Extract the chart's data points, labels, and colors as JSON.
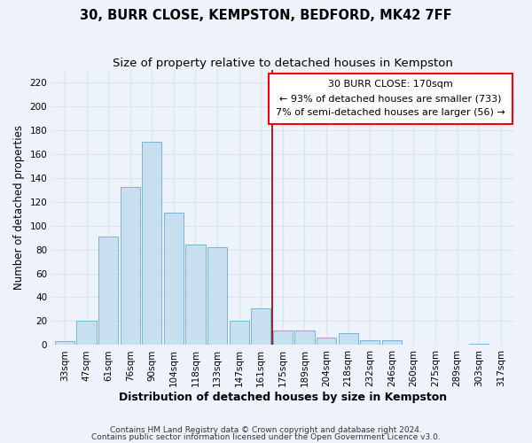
{
  "title": "30, BURR CLOSE, KEMPSTON, BEDFORD, MK42 7FF",
  "subtitle": "Size of property relative to detached houses in Kempston",
  "xlabel": "Distribution of detached houses by size in Kempston",
  "ylabel": "Number of detached properties",
  "bar_labels": [
    "33sqm",
    "47sqm",
    "61sqm",
    "76sqm",
    "90sqm",
    "104sqm",
    "118sqm",
    "133sqm",
    "147sqm",
    "161sqm",
    "175sqm",
    "189sqm",
    "204sqm",
    "218sqm",
    "232sqm",
    "246sqm",
    "260sqm",
    "275sqm",
    "289sqm",
    "303sqm",
    "317sqm"
  ],
  "bar_heights": [
    3,
    20,
    91,
    132,
    170,
    111,
    84,
    82,
    20,
    31,
    12,
    12,
    6,
    10,
    4,
    4,
    0,
    0,
    0,
    1,
    0
  ],
  "bar_color": "#c8dff0",
  "bar_edge_color": "#7bb4d4",
  "vline_label": "30 BURR CLOSE: 170sqm",
  "annotation_line1": "← 93% of detached houses are smaller (733)",
  "annotation_line2": "7% of semi-detached houses are larger (56) →",
  "ylim": [
    0,
    230
  ],
  "yticks": [
    0,
    20,
    40,
    60,
    80,
    100,
    120,
    140,
    160,
    180,
    200,
    220
  ],
  "footnote1": "Contains HM Land Registry data © Crown copyright and database right 2024.",
  "footnote2": "Contains public sector information licensed under the Open Government Licence v3.0.",
  "bg_color": "#eef2fa",
  "grid_color": "#d8e4f0",
  "title_fontsize": 10.5,
  "subtitle_fontsize": 9.5,
  "xlabel_fontsize": 9,
  "ylabel_fontsize": 8.5,
  "tick_fontsize": 7.5,
  "footnote_fontsize": 6.5
}
